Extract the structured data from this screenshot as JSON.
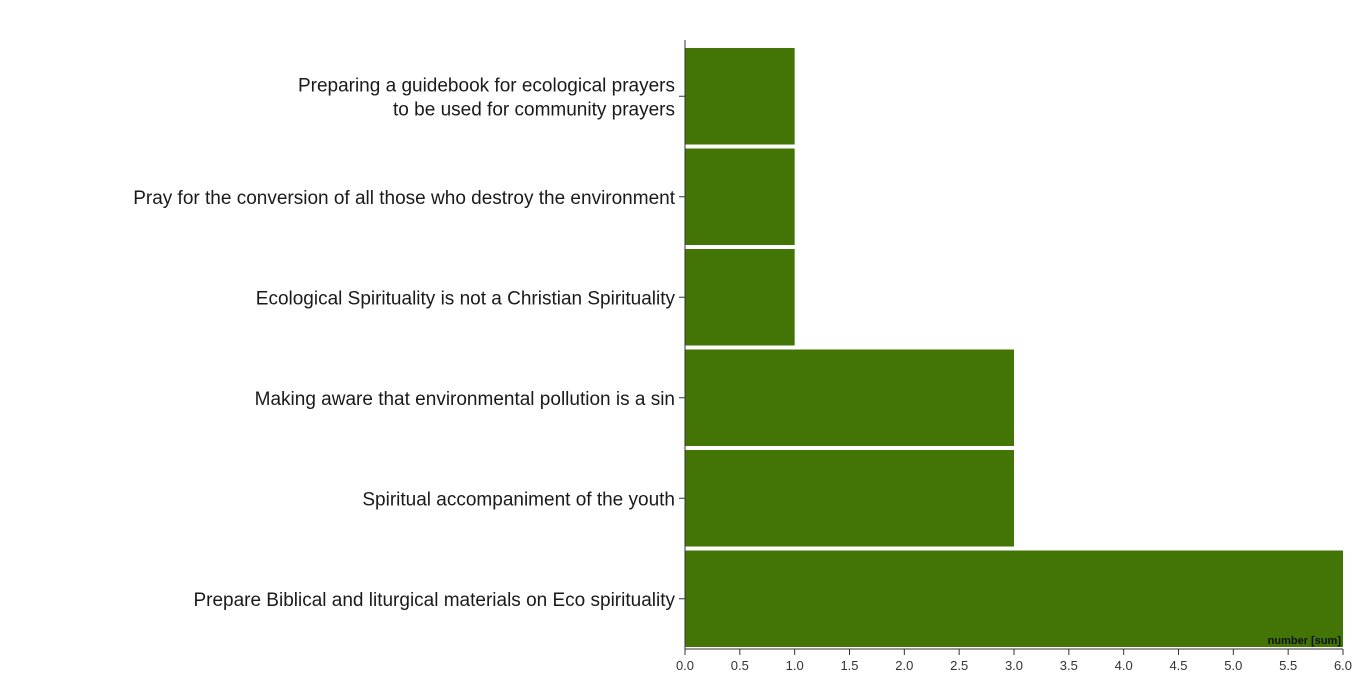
{
  "chart_data": {
    "type": "bar",
    "orientation": "horizontal",
    "categories": [
      [
        "Preparing a guidebook for ecological prayers",
        "to be used for community prayers"
      ],
      [
        "Pray for the conversion of all those who destroy the environment"
      ],
      [
        "Ecological Spirituality is not a Christian Spirituality"
      ],
      [
        "Making aware that environmental pollution is a sin"
      ],
      [
        "Spiritual accompaniment of the youth"
      ],
      [
        "Prepare Biblical and liturgical materials on Eco spirituality"
      ]
    ],
    "values": [
      1,
      1,
      1,
      3,
      3,
      6
    ],
    "xlabel": "number [sum]",
    "ylabel": "",
    "xlim": [
      0,
      6
    ],
    "xticks": [
      "0.0",
      "0.5",
      "1.0",
      "1.5",
      "2.0",
      "2.5",
      "3.0",
      "3.5",
      "4.0",
      "4.5",
      "5.0",
      "5.5",
      "6.0"
    ],
    "bar_color": "#437506",
    "grid": false
  }
}
